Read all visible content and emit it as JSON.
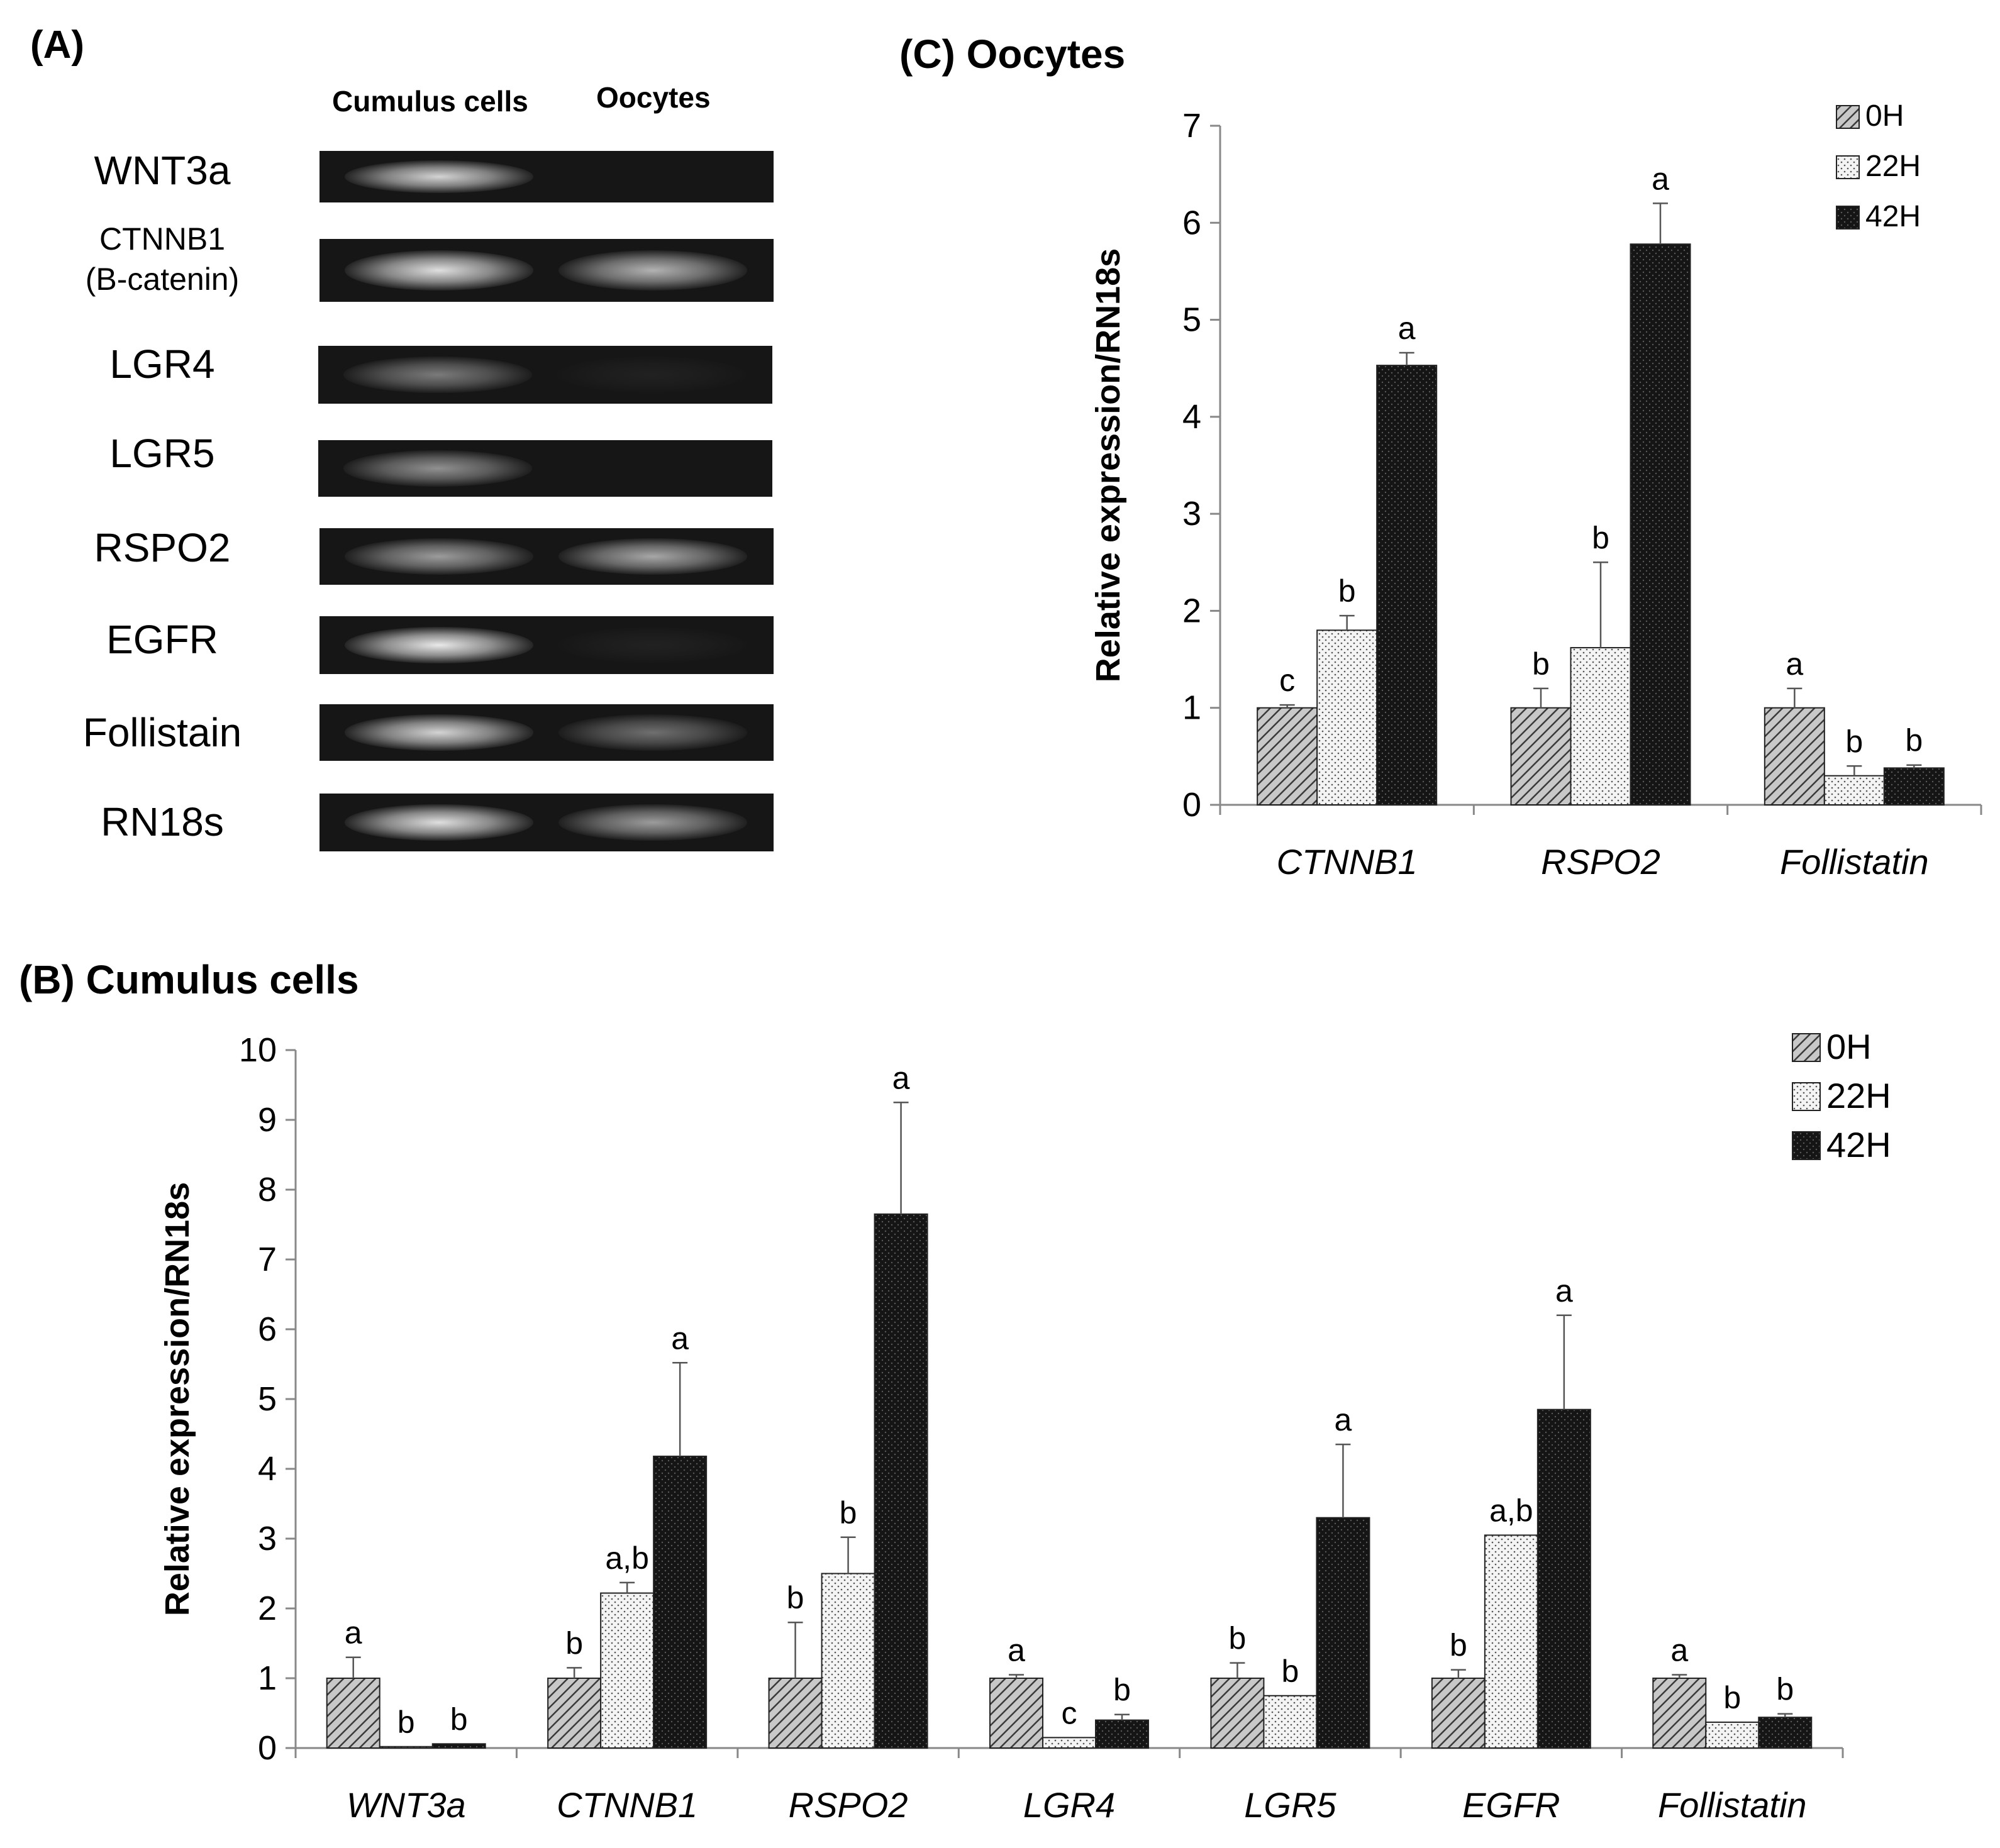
{
  "panel_a": {
    "label": "(A)",
    "column_headers": [
      "Cumulus cells",
      "Oocytes"
    ],
    "genes": [
      {
        "name": "WNT3a",
        "sub": "",
        "cumulus": 0.85,
        "oocyte": 0.0
      },
      {
        "name": "CTNNB1",
        "sub": "(B-catenin)",
        "cumulus": 0.9,
        "oocyte": 0.7
      },
      {
        "name": "LGR4",
        "sub": "",
        "cumulus": 0.45,
        "oocyte": 0.05
      },
      {
        "name": "LGR5",
        "sub": "",
        "cumulus": 0.55,
        "oocyte": 0.0
      },
      {
        "name": "RSPO2",
        "sub": "",
        "cumulus": 0.6,
        "oocyte": 0.65
      },
      {
        "name": "EGFR",
        "sub": "",
        "cumulus": 0.95,
        "oocyte": 0.05
      },
      {
        "name": "Follistain",
        "sub": "",
        "cumulus": 0.85,
        "oocyte": 0.4
      },
      {
        "name": "RN18s",
        "sub": "",
        "cumulus": 0.9,
        "oocyte": 0.6
      }
    ]
  },
  "chart_data": [
    {
      "id": "C",
      "type": "bar",
      "title": "(C)  Oocytes",
      "xlabel": "",
      "ylabel": "Relative expression/RN18s",
      "ylim": [
        0,
        7
      ],
      "yticks": [
        0,
        1,
        2,
        3,
        4,
        5,
        6,
        7
      ],
      "categories": [
        "CTNNB1",
        "RSPO2",
        "Follistatin"
      ],
      "legend": {
        "position": "top-right",
        "entries": [
          "0H",
          "22H",
          "42H"
        ]
      },
      "series": [
        {
          "name": "0H",
          "pattern": "hatch",
          "values": [
            1.0,
            1.0,
            1.0
          ],
          "errors": [
            0.03,
            0.2,
            0.2
          ],
          "letters": [
            "c",
            "b",
            "a"
          ]
        },
        {
          "name": "22H",
          "pattern": "dots",
          "values": [
            1.8,
            1.62,
            0.3
          ],
          "errors": [
            0.15,
            0.88,
            0.1
          ],
          "letters": [
            "b",
            "b",
            "b"
          ]
        },
        {
          "name": "42H",
          "pattern": "dark",
          "values": [
            4.53,
            5.78,
            0.38
          ],
          "errors": [
            0.13,
            0.42,
            0.03
          ],
          "letters": [
            "a",
            "a",
            "b"
          ]
        }
      ]
    },
    {
      "id": "B",
      "type": "bar",
      "title": "(B) Cumulus cells",
      "xlabel": "",
      "ylabel": "Relative expression/RN18s",
      "ylim": [
        0,
        10
      ],
      "yticks": [
        0,
        1,
        2,
        3,
        4,
        5,
        6,
        7,
        8,
        9,
        10
      ],
      "categories": [
        "WNT3a",
        "CTNNB1",
        "RSPO2",
        "LGR4",
        "LGR5",
        "EGFR",
        "Follistatin"
      ],
      "legend": {
        "position": "top-right",
        "entries": [
          "0H",
          "22H",
          "42H"
        ]
      },
      "series": [
        {
          "name": "0H",
          "pattern": "hatch",
          "values": [
            1.0,
            1.0,
            1.0,
            1.0,
            1.0,
            1.0,
            1.0
          ],
          "errors": [
            0.3,
            0.15,
            0.8,
            0.05,
            0.22,
            0.12,
            0.05
          ],
          "letters": [
            "a",
            "b",
            "b",
            "a",
            "b",
            "b",
            "a"
          ]
        },
        {
          "name": "22H",
          "pattern": "dots",
          "values": [
            0.02,
            2.22,
            2.5,
            0.15,
            0.75,
            3.05,
            0.37
          ],
          "errors": [
            0.0,
            0.15,
            0.52,
            0.0,
            0.0,
            0.0,
            0.0
          ],
          "letters": [
            "b",
            "a,b",
            "b",
            "c",
            "b",
            "a,b",
            "b"
          ]
        },
        {
          "name": "42H",
          "pattern": "dark",
          "values": [
            0.06,
            4.18,
            7.65,
            0.4,
            3.3,
            4.85,
            0.44
          ],
          "errors": [
            0.0,
            1.34,
            1.6,
            0.08,
            1.05,
            1.35,
            0.05
          ],
          "letters": [
            "b",
            "a",
            "a",
            "b",
            "a",
            "a",
            "b"
          ]
        }
      ]
    }
  ]
}
